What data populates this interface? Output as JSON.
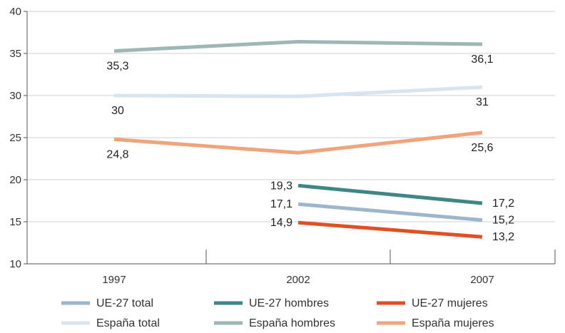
{
  "chart_data": {
    "type": "line",
    "title": "",
    "xlabel": "",
    "ylabel": "",
    "categories": [
      "1997",
      "2002",
      "2007"
    ],
    "ylim": [
      10,
      40
    ],
    "yticks": [
      "10",
      "15",
      "20",
      "25",
      "30",
      "35",
      "40"
    ],
    "grid": "horizontal",
    "legend_position": "bottom",
    "series": [
      {
        "name": "UE-27 total",
        "color": "#9eb6cb",
        "values": [
          null,
          17.1,
          15.2
        ],
        "labels": [
          "",
          "17,1",
          "15,2"
        ]
      },
      {
        "name": "UE-27 hombres",
        "color": "#3d8786",
        "values": [
          null,
          19.3,
          17.2
        ],
        "labels": [
          "",
          "19,3",
          "17,2"
        ]
      },
      {
        "name": "UE-27 mujeres",
        "color": "#e34e23",
        "values": [
          null,
          14.9,
          13.2
        ],
        "labels": [
          "",
          "14,9",
          "13,2"
        ]
      },
      {
        "name": "España total",
        "color": "#d8e5ef",
        "values": [
          30,
          29.9,
          31
        ],
        "labels": [
          "30",
          "",
          "31"
        ]
      },
      {
        "name": "España hombres",
        "color": "#9fb7b4",
        "values": [
          35.3,
          36.4,
          36.1
        ],
        "labels": [
          "35,3",
          "",
          "36,1"
        ]
      },
      {
        "name": "España mujeres",
        "color": "#f0a47c",
        "values": [
          24.8,
          23.2,
          25.6
        ],
        "labels": [
          "24,8",
          "",
          "25,6"
        ]
      }
    ]
  }
}
